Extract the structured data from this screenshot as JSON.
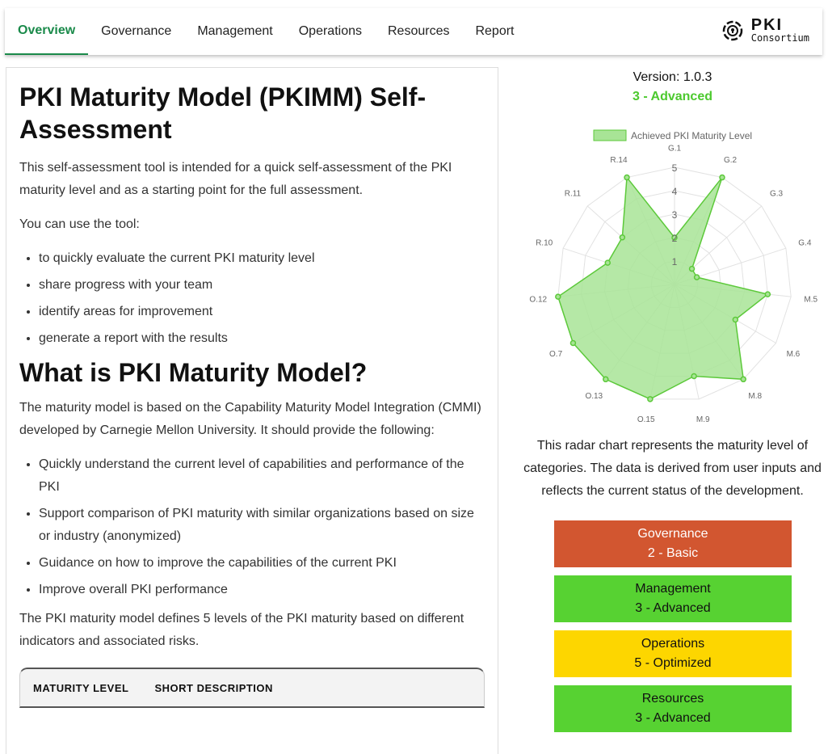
{
  "nav": {
    "tabs": [
      "Overview",
      "Governance",
      "Management",
      "Operations",
      "Resources",
      "Report"
    ],
    "active": "Overview",
    "logo_line1": "PKI",
    "logo_line2": "Consortium"
  },
  "main": {
    "title": "PKI Maturity Model (PKIMM) Self-Assessment",
    "intro": "This self-assessment tool is intended for a quick self-assessment of the PKI maturity level and as a starting point for the full assessment.",
    "use_label": "You can use the tool:",
    "uses": [
      "to quickly evaluate the current PKI maturity level",
      "share progress with your team",
      "identify areas for improvement",
      "generate a report with the results"
    ],
    "what_title": "What is PKI Maturity Model?",
    "what_text": "The maturity model is based on the Capability Maturity Model Integration (CMMI) developed by Carnegie Mellon University. It should provide the following:",
    "provides": [
      "Quickly understand the current level of capabilities and performance of the PKI",
      "Support comparison of PKI maturity with similar organizations based on size or industry (anonymized)",
      "Guidance on how to improve the capabilities of the current PKI",
      "Improve overall PKI performance"
    ],
    "levels_text": "The PKI maturity model defines 5 levels of the PKI maturity based on different indicators and associated risks.",
    "table_headers": [
      "MATURITY LEVEL",
      "SHORT DESCRIPTION"
    ]
  },
  "side": {
    "version": "Version: 1.0.3",
    "overall": "3 - Advanced",
    "description": "This radar chart represents the maturity level of categories. The data is derived from user inputs and reflects the current status of the development.",
    "categories": [
      {
        "name": "Governance",
        "level": "2 - Basic",
        "color": "#d25630",
        "text": "#ffffff"
      },
      {
        "name": "Management",
        "level": "3 - Advanced",
        "color": "#57d232",
        "text": "#111111"
      },
      {
        "name": "Operations",
        "level": "5 - Optimized",
        "color": "#fdd600",
        "text": "#111111"
      },
      {
        "name": "Resources",
        "level": "3 - Advanced",
        "color": "#57d232",
        "text": "#111111"
      }
    ]
  },
  "chart_data": {
    "type": "radar",
    "legend": "Achieved PKI Maturity Level",
    "legend_position": "top",
    "labels": [
      "G.1",
      "G.2",
      "G.3",
      "G.4",
      "M.5",
      "M.6",
      "M.8",
      "M.9",
      "O.15",
      "O.13",
      "O.7",
      "O.12",
      "R.10",
      "R.11",
      "R.14"
    ],
    "values": [
      2,
      5,
      1,
      1,
      4,
      3,
      5,
      4,
      5,
      5,
      5,
      5,
      3,
      3,
      5
    ],
    "ticks": [
      1,
      2,
      3,
      4,
      5
    ],
    "range": [
      0,
      5
    ],
    "fill_color": "#a8e496",
    "line_color": "#5cc93a"
  }
}
